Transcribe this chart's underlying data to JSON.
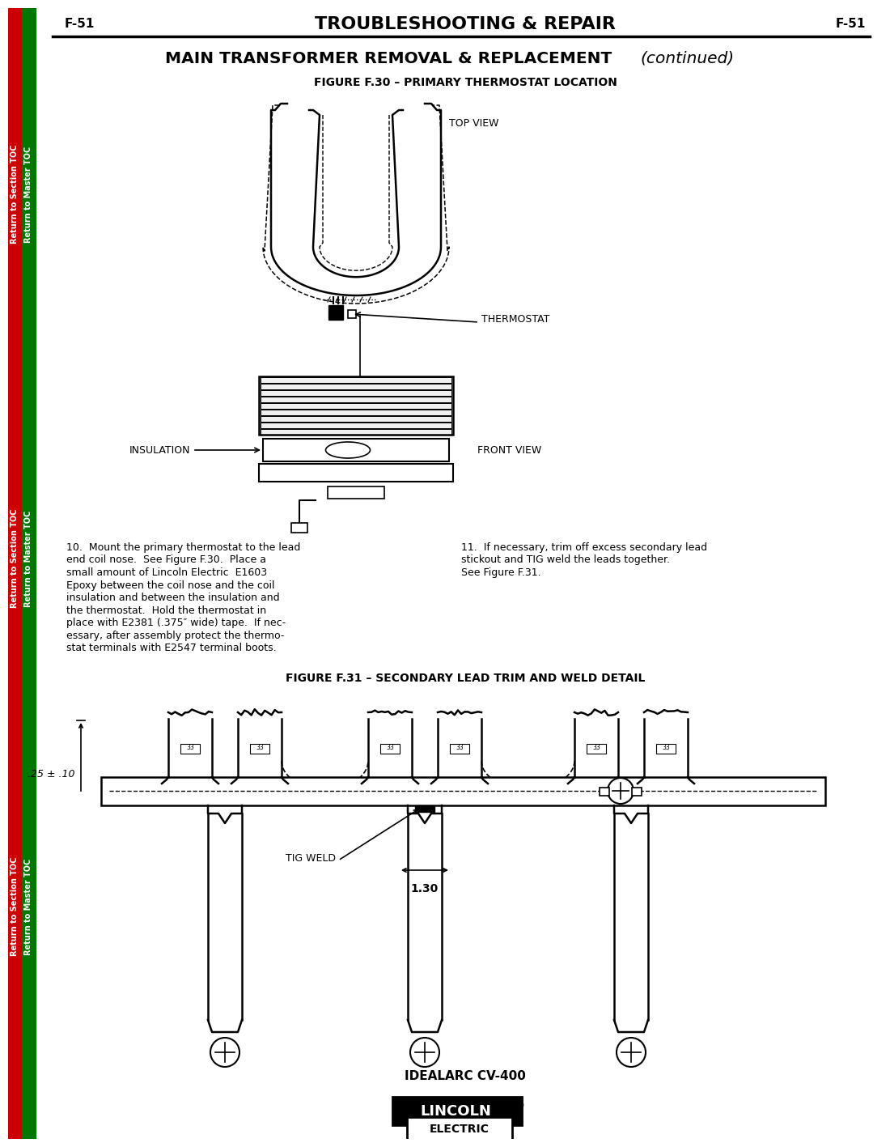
{
  "page_label": "F-51",
  "header_title": "TROUBLESHOOTING & REPAIR",
  "section_title": "MAIN TRANSFORMER REMOVAL & REPLACEMENT",
  "section_italic": "(continued)",
  "fig30_caption": "FIGURE F.30 – PRIMARY THERMOSTAT LOCATION",
  "fig31_caption": "FIGURE F.31 – SECONDARY LEAD TRIM AND WELD DETAIL",
  "label_top_view": "TOP VIEW",
  "label_thermostat": "THERMOSTAT",
  "label_insulation": "INSULATION",
  "label_front_view": "FRONT VIEW",
  "label_tig_weld": "TIG WELD",
  "label_dim1": ".25 ± .10",
  "label_dim2": "1.30",
  "label_footer": "IDEALARC CV-400",
  "text_col1_lines": [
    "10.  Mount the primary thermostat to the lead",
    "end coil nose.  See Figure F.30.  Place a",
    "small amount of Lincoln Electric  E1603",
    "Epoxy between the coil nose and the coil",
    "insulation and between the insulation and",
    "the thermostat.  Hold the thermostat in",
    "place with E2381 (.375″ wide) tape.  If nec-",
    "essary, after assembly protect the thermo-",
    "stat terminals with E2547 terminal boots."
  ],
  "text_col2_lines": [
    "11.  If necessary, trim off excess secondary lead",
    "stickout and TIG weld the leads together.",
    "See Figure F.31."
  ],
  "bg_color": "#ffffff",
  "text_color": "#000000",
  "red_color": "#cc0000",
  "green_color": "#007700"
}
